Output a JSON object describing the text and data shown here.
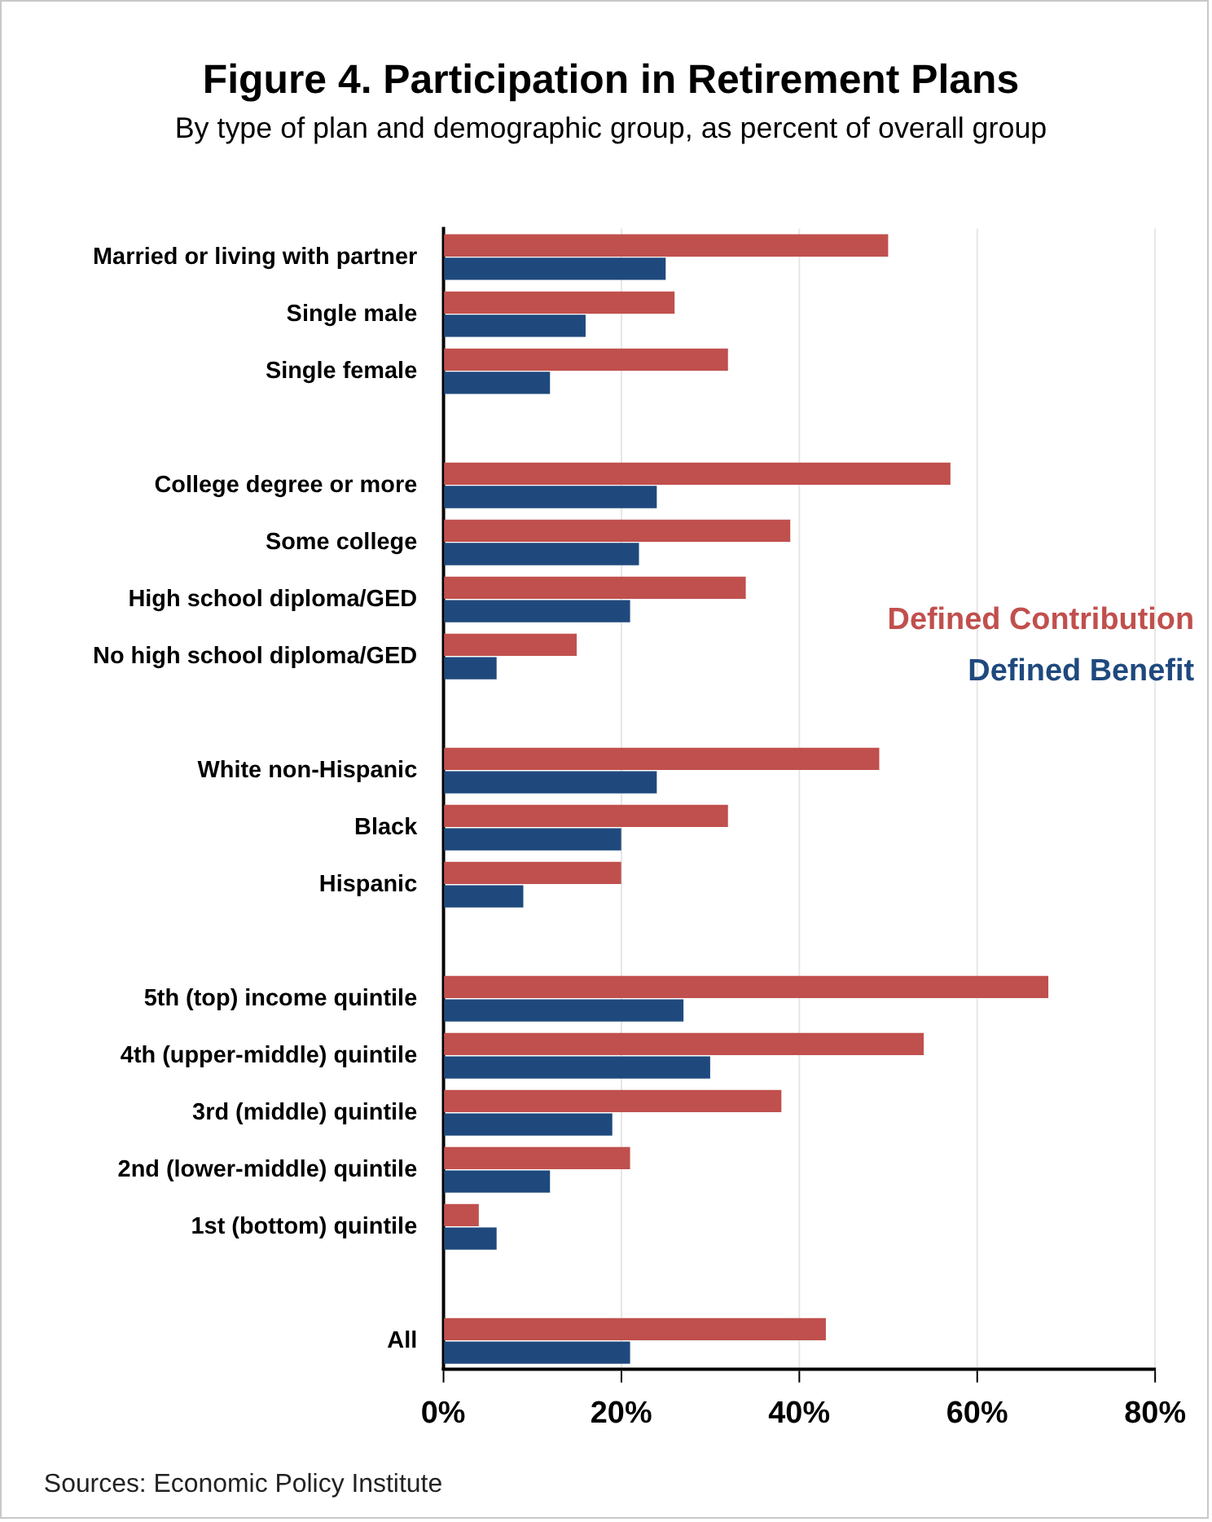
{
  "chart_data": {
    "type": "bar",
    "orientation": "horizontal",
    "title": "Figure 4. Participation in Retirement Plans",
    "subtitle": "By type of plan and demographic group, as percent of overall group",
    "categories": [
      "Married or living with partner",
      "Single male",
      "Single female",
      null,
      "College degree or more",
      "Some college",
      "High school diploma/GED",
      "No high school diploma/GED",
      null,
      "White non-Hispanic",
      "Black",
      "Hispanic",
      null,
      "5th (top) income quintile",
      "4th (upper-middle) quintile",
      "3rd (middle) quintile",
      "2nd (lower-middle) quintile",
      "1st (bottom) quintile",
      null,
      "All"
    ],
    "series": [
      {
        "name": "Defined Contribution",
        "color": "#c0504d",
        "values": [
          50,
          26,
          32,
          null,
          57,
          39,
          34,
          15,
          null,
          49,
          32,
          20,
          null,
          68,
          54,
          38,
          21,
          4,
          null,
          43
        ]
      },
      {
        "name": "Defined Benefit",
        "color": "#1f497d",
        "values": [
          25,
          16,
          12,
          null,
          24,
          22,
          21,
          6,
          null,
          24,
          20,
          9,
          null,
          27,
          30,
          19,
          12,
          6,
          null,
          21
        ]
      }
    ],
    "xlim": [
      0,
      80
    ],
    "xticks": [
      {
        "value": 0,
        "label": "0%"
      },
      {
        "value": 20,
        "label": "20%"
      },
      {
        "value": 40,
        "label": "40%"
      },
      {
        "value": 60,
        "label": "60%"
      },
      {
        "value": 80,
        "label": "80%"
      }
    ],
    "grid": "x",
    "legend": "right",
    "annotations": [
      "Sources: Economic Policy Institute"
    ]
  }
}
